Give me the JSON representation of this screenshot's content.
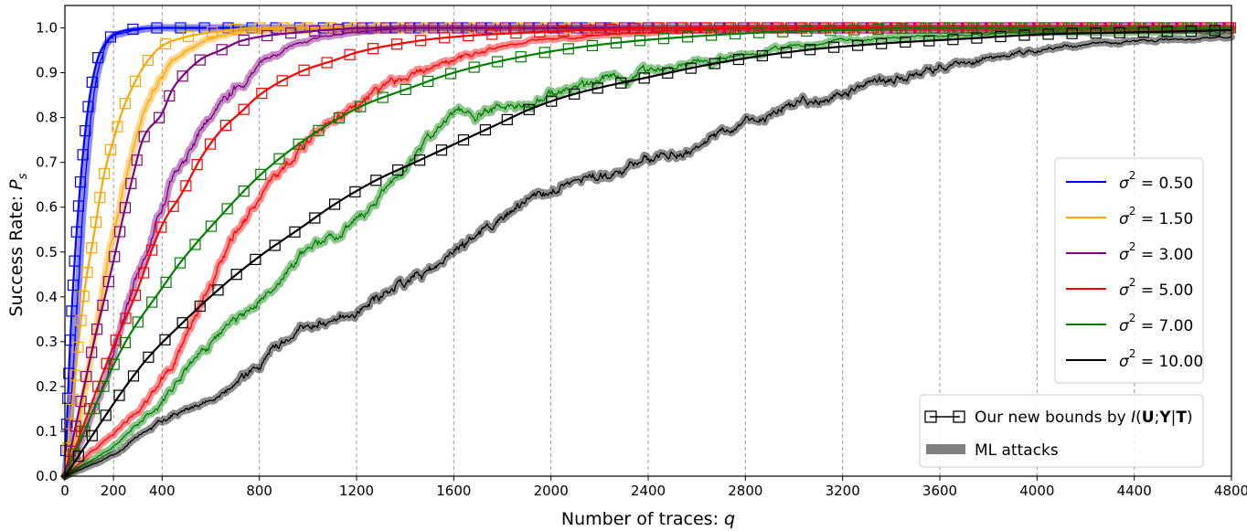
{
  "chart_data": {
    "type": "line",
    "xlabel": "Number of traces: q",
    "ylabel": "Success Rate: P_s",
    "xlim": [
      0,
      4800
    ],
    "ylim": [
      0.0,
      1.05
    ],
    "x_ticks": [
      0,
      200,
      400,
      800,
      1200,
      1600,
      2000,
      2400,
      2800,
      3200,
      3600,
      4000,
      4400,
      4800
    ],
    "x_tick_labels": [
      "0",
      "200",
      "400",
      "800",
      "1200",
      "1600",
      "2000",
      "2400",
      "2800",
      "3200",
      "3600",
      "4000",
      "4400",
      "4800"
    ],
    "y_ticks": [
      0.0,
      0.1,
      0.2,
      0.3,
      0.4,
      0.5,
      0.6,
      0.7,
      0.8,
      0.9,
      1.0
    ],
    "y_tick_labels": [
      "0.0",
      "0.1",
      "0.2",
      "0.3",
      "0.4",
      "0.5",
      "0.6",
      "0.7",
      "0.8",
      "0.9",
      "1.0"
    ],
    "grid": "vertical dashed",
    "legend_position": "right",
    "series": [
      {
        "name": "σ² = 0.50",
        "color": "#0000ff",
        "bound_x": [
          0,
          20,
          40,
          60,
          80,
          100,
          120,
          140,
          160,
          180,
          200,
          240,
          280,
          320,
          400,
          500,
          600,
          800
        ],
        "bound_y": [
          0.0,
          0.28,
          0.48,
          0.63,
          0.75,
          0.84,
          0.9,
          0.94,
          0.96,
          0.975,
          0.985,
          0.993,
          0.997,
          0.999,
          1.0,
          1.0,
          1.0,
          1.0
        ],
        "ml_x": [
          0,
          20,
          40,
          60,
          80,
          100,
          120,
          140,
          160,
          180,
          200,
          250,
          300,
          400,
          600,
          800
        ],
        "ml_y": [
          0.0,
          0.12,
          0.3,
          0.48,
          0.64,
          0.76,
          0.85,
          0.91,
          0.95,
          0.97,
          0.98,
          0.99,
          0.995,
          1.0,
          1.0,
          1.0
        ]
      },
      {
        "name": "σ² = 1.50",
        "color": "#ffa500",
        "bound_x": [
          0,
          80,
          120,
          160,
          200,
          240,
          280,
          320,
          360,
          400,
          500,
          600,
          800,
          1000
        ],
        "bound_y": [
          0.0,
          0.41,
          0.54,
          0.67,
          0.75,
          0.82,
          0.87,
          0.91,
          0.94,
          0.96,
          0.98,
          0.99,
          1.0,
          1.0
        ],
        "ml_x": [
          0,
          50,
          100,
          150,
          200,
          250,
          300,
          350,
          400,
          450,
          500,
          600,
          700,
          800,
          1000
        ],
        "ml_y": [
          0.0,
          0.1,
          0.24,
          0.4,
          0.54,
          0.66,
          0.76,
          0.84,
          0.89,
          0.93,
          0.95,
          0.975,
          0.99,
          0.995,
          1.0
        ]
      },
      {
        "name": "σ² = 3.00",
        "color": "#800080",
        "bound_x": [
          0,
          120,
          200,
          240,
          280,
          320,
          400,
          440,
          480,
          560,
          640,
          720,
          800,
          960,
          1200
        ],
        "bound_y": [
          0.0,
          0.3,
          0.48,
          0.58,
          0.67,
          0.75,
          0.81,
          0.86,
          0.89,
          0.93,
          0.95,
          0.97,
          0.98,
          0.99,
          1.0
        ],
        "ml_x": [
          0,
          100,
          200,
          300,
          400,
          500,
          600,
          700,
          800,
          900,
          1000,
          1200,
          1400
        ],
        "ml_y": [
          0.0,
          0.12,
          0.28,
          0.45,
          0.6,
          0.72,
          0.81,
          0.87,
          0.92,
          0.95,
          0.97,
          0.99,
          1.0
        ]
      },
      {
        "name": "σ² = 5.00",
        "color": "#ff0000",
        "bound_x": [
          0,
          200,
          280,
          400,
          480,
          560,
          640,
          720,
          800,
          960,
          1120,
          1200,
          1440,
          1600,
          1920,
          2400
        ],
        "bound_y": [
          0.0,
          0.29,
          0.39,
          0.56,
          0.63,
          0.71,
          0.77,
          0.81,
          0.85,
          0.9,
          0.93,
          0.945,
          0.97,
          0.98,
          0.99,
          1.0
        ],
        "ml_x": [
          0,
          200,
          400,
          600,
          800,
          1000,
          1200,
          1400,
          1600,
          1800,
          2000,
          2400,
          2800
        ],
        "ml_y": [
          0.0,
          0.1,
          0.22,
          0.43,
          0.63,
          0.74,
          0.83,
          0.89,
          0.93,
          0.96,
          0.975,
          0.99,
          1.0
        ]
      },
      {
        "name": "σ² = 7.00",
        "color": "#008000",
        "bound_x": [
          0,
          240,
          400,
          480,
          640,
          800,
          960,
          1200,
          1440,
          1600,
          1920,
          2240,
          2560,
          2880,
          3200,
          3600,
          4000
        ],
        "bound_y": [
          0.0,
          0.29,
          0.42,
          0.48,
          0.58,
          0.67,
          0.74,
          0.82,
          0.87,
          0.9,
          0.94,
          0.965,
          0.98,
          0.99,
          0.995,
          1.0,
          1.0
        ],
        "ml_x": [
          0,
          200,
          400,
          600,
          800,
          1000,
          1200,
          1400,
          1600,
          1800,
          2000,
          2400,
          2800,
          3200,
          3600,
          4000,
          4400,
          4800
        ],
        "ml_y": [
          0.0,
          0.07,
          0.17,
          0.3,
          0.4,
          0.5,
          0.57,
          0.69,
          0.8,
          0.82,
          0.85,
          0.9,
          0.94,
          0.97,
          0.98,
          0.99,
          0.99,
          0.995
        ]
      },
      {
        "name": "σ² = 10.00",
        "color": "#000000",
        "bound_x": [
          0,
          320,
          480,
          640,
          800,
          960,
          1120,
          1280,
          1440,
          1600,
          1760,
          1920,
          2080,
          2400,
          2720,
          3040,
          3360,
          3680,
          4000,
          4400,
          4800
        ],
        "bound_y": [
          0.0,
          0.25,
          0.34,
          0.42,
          0.49,
          0.55,
          0.61,
          0.66,
          0.7,
          0.74,
          0.78,
          0.82,
          0.85,
          0.89,
          0.925,
          0.95,
          0.965,
          0.975,
          0.985,
          0.99,
          0.995
        ],
        "ml_x": [
          0,
          200,
          400,
          600,
          800,
          1000,
          1200,
          1400,
          1600,
          1800,
          2000,
          2200,
          2400,
          2600,
          2800,
          3000,
          3200,
          3400,
          3600,
          3800,
          4000,
          4200,
          4400,
          4600,
          4800
        ],
        "ml_y": [
          0.0,
          0.05,
          0.12,
          0.17,
          0.25,
          0.33,
          0.37,
          0.43,
          0.5,
          0.58,
          0.64,
          0.67,
          0.71,
          0.74,
          0.78,
          0.83,
          0.86,
          0.88,
          0.91,
          0.93,
          0.95,
          0.965,
          0.97,
          0.975,
          0.98
        ]
      }
    ],
    "legend_lines": [
      {
        "sigma_symbol": "σ",
        "sup": "2",
        "value": " = 0.50",
        "color": "#0000ff"
      },
      {
        "sigma_symbol": "σ",
        "sup": "2",
        "value": " = 1.50",
        "color": "#ffa500"
      },
      {
        "sigma_symbol": "σ",
        "sup": "2",
        "value": " = 3.00",
        "color": "#800080"
      },
      {
        "sigma_symbol": "σ",
        "sup": "2",
        "value": " = 5.00",
        "color": "#ff0000"
      },
      {
        "sigma_symbol": "σ",
        "sup": "2",
        "value": " = 7.00",
        "color": "#008000"
      },
      {
        "sigma_symbol": "σ",
        "sup": "2",
        "value": " = 10.00",
        "color": "#000000"
      }
    ],
    "legend_markers": {
      "bounds_prefix": "Our new bounds by ",
      "bounds_I": "I",
      "bounds_open": "(",
      "bounds_U": "U",
      "bounds_sep1": ";",
      "bounds_Y": "Y",
      "bounds_sep2": "|",
      "bounds_T": "T",
      "bounds_close": ")",
      "ml_label": "ML attacks",
      "ml_color": "#808080"
    },
    "ylabel_parts": {
      "main": "Success Rate: ",
      "P": "P",
      "sub": "s"
    },
    "xlabel_parts": {
      "main": "Number of traces: ",
      "q": "q"
    }
  }
}
